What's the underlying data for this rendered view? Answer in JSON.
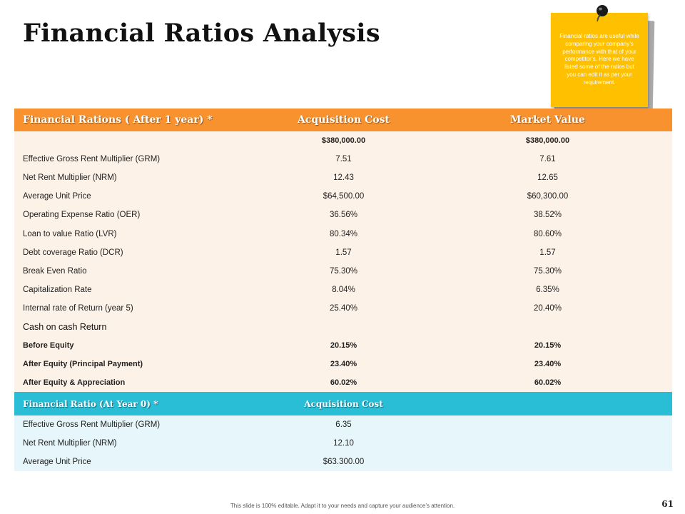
{
  "title": "Financial Ratios Analysis",
  "note": {
    "text": "Financial ratios are useful while comparing your company’s performance with that of your competitor’s. Here we have listed some of the ratios but you can edit it as per your requirement.",
    "color": "#ffc000",
    "icon": "pushpin-icon"
  },
  "table1": {
    "header": {
      "col1": "Financial Rations ( After 1 year) *",
      "col2": "Acquisition Cost",
      "col3": "Market Value",
      "color": "#f7922f"
    },
    "rows": [
      {
        "label": "",
        "acq": "$380,000.00",
        "mkt": "$380,000.00",
        "bold": true
      },
      {
        "label": "Effective Gross Rent Multiplier (GRM)",
        "acq": "7.51",
        "mkt": "7.61"
      },
      {
        "label": "Net Rent Multiplier (NRM)",
        "acq": "12.43",
        "mkt": "12.65"
      },
      {
        "label": "Average Unit Price",
        "acq": "$64,500.00",
        "mkt": "$60,300.00"
      },
      {
        "label": "Operating Expense Ratio (OER)",
        "acq": "36.56%",
        "mkt": "38.52%"
      },
      {
        "label": "Loan to value Ratio (LVR)",
        "acq": "80.34%",
        "mkt": "80.60%"
      },
      {
        "label": "Debt coverage Ratio (DCR)",
        "acq": "1.57",
        "mkt": "1.57"
      },
      {
        "label": "Break Even Ratio",
        "acq": "75.30%",
        "mkt": "75.30%"
      },
      {
        "label": "Capitalization Rate",
        "acq": "8.04%",
        "mkt": "6.35%"
      },
      {
        "label": "Internal rate of Return (year 5)",
        "acq": "25.40%",
        "mkt": "20.40%"
      },
      {
        "label": "Cash on cash Return",
        "acq": "",
        "mkt": "",
        "sub": true
      },
      {
        "label": "Before Equity",
        "acq": "20.15%",
        "mkt": "20.15%",
        "bold": true
      },
      {
        "label": "After Equity  (Principal Payment)",
        "acq": "23.40%",
        "mkt": "23.40%",
        "bold": true
      },
      {
        "label": "After Equity  & Appreciation",
        "acq": "60.02%",
        "mkt": "60.02%",
        "bold": true
      }
    ]
  },
  "table2": {
    "header": {
      "col1": "Financial Ratio (At Year 0) *",
      "col2": "Acquisition Cost",
      "color": "#29bdd6"
    },
    "rows": [
      {
        "label": "Effective Gross Rent Multiplier (GRM)",
        "acq": "6.35"
      },
      {
        "label": "Net Rent Multiplier (NRM)",
        "acq": "12.10"
      },
      {
        "label": "Average Unit Price",
        "acq": "$63.300.00"
      }
    ]
  },
  "footer": {
    "text": "This slide is 100% editable. Adapt it to your needs and capture your audience’s attention.",
    "page_number": "61"
  }
}
